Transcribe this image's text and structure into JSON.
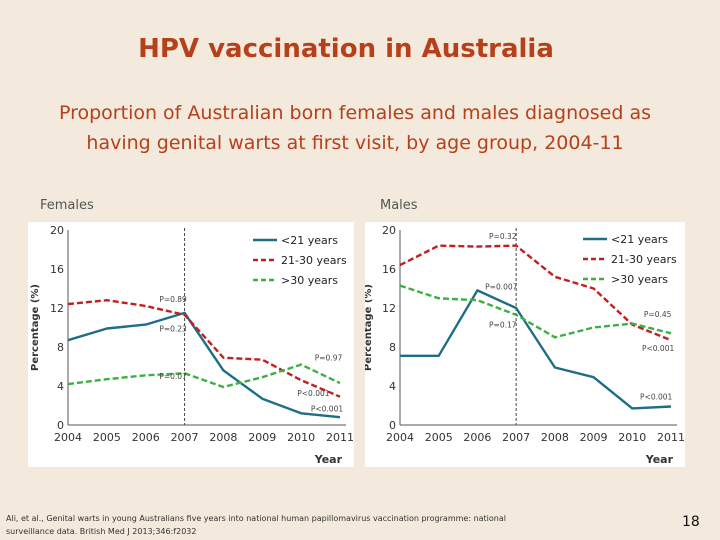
{
  "slide": {
    "title": "HPV vaccination in Australia",
    "subtitle_line1": "Proportion of Australian born females and males diagnosed as",
    "subtitle_line2": "having genital warts at first visit, by age group,  2004-11",
    "females_label": "Females",
    "males_label": "Males",
    "footer_line1": "Ali, et al., Genital warts in young Australians five years into national human papillomavirus vaccination programme: national",
    "footer_line2": "surveillance data.  British Med J 2013;346:f2032",
    "page_number": "18"
  },
  "colors": {
    "under21": "#1e6e85",
    "age21to30": "#c41e1e",
    "over30": "#3cb043",
    "title": "#b5401a"
  },
  "chart_data": [
    {
      "type": "line",
      "name": "Females",
      "x": [
        2004,
        2005,
        2006,
        2007,
        2008,
        2009,
        2010,
        2011
      ],
      "xlabel": "Year",
      "ylabel": "Percentage (%)",
      "ylim": [
        0,
        20
      ],
      "yticks": [
        0,
        4,
        8,
        12,
        16,
        20
      ],
      "legend": "top-right",
      "vline_x": 2007,
      "series": [
        {
          "name": "<21 years",
          "color": "#1e6e85",
          "style": "solid",
          "values": [
            8.7,
            9.9,
            10.3,
            11.5,
            5.6,
            2.7,
            1.2,
            0.8
          ]
        },
        {
          "name": "21-30 years",
          "color": "#c41e1e",
          "style": "dashed",
          "values": [
            12.4,
            12.8,
            12.2,
            11.3,
            6.9,
            6.7,
            4.6,
            2.9
          ]
        },
        {
          "name": ">30 years",
          "color": "#3cb043",
          "style": "dashed",
          "values": [
            4.2,
            4.7,
            5.1,
            5.3,
            3.9,
            4.9,
            6.2,
            4.3
          ]
        }
      ],
      "annotations": [
        {
          "text": "P=0.89",
          "x": 2006.35,
          "y": 12.6
        },
        {
          "text": "P=0.23",
          "x": 2006.35,
          "y": 9.6
        },
        {
          "text": "P=0.07",
          "x": 2006.35,
          "y": 4.7
        },
        {
          "text": "P=0.97",
          "x": 2010.35,
          "y": 6.6
        },
        {
          "text": "P<0.001",
          "x": 2009.9,
          "y": 3.0
        },
        {
          "text": "P<0.001",
          "x": 2010.25,
          "y": 1.4
        }
      ]
    },
    {
      "type": "line",
      "name": "Males",
      "x": [
        2004,
        2005,
        2006,
        2007,
        2008,
        2009,
        2010,
        2011
      ],
      "xlabel": "Year",
      "ylabel": "Percentage (%)",
      "ylim": [
        0,
        20
      ],
      "yticks": [
        0,
        4,
        8,
        12,
        16,
        20
      ],
      "legend": "top-right",
      "vline_x": 2007,
      "series": [
        {
          "name": "<21 years",
          "color": "#1e6e85",
          "style": "solid",
          "values": [
            7.1,
            7.1,
            13.8,
            12.0,
            5.9,
            4.9,
            1.7,
            1.9
          ]
        },
        {
          "name": "21-30 years",
          "color": "#c41e1e",
          "style": "dashed",
          "values": [
            16.4,
            18.4,
            18.3,
            18.4,
            15.2,
            14.0,
            10.3,
            8.7
          ]
        },
        {
          "name": ">30 years",
          "color": "#3cb043",
          "style": "dashed",
          "values": [
            14.3,
            13.0,
            12.8,
            11.3,
            9.0,
            10.0,
            10.4,
            9.4
          ]
        }
      ],
      "annotations": [
        {
          "text": "P=0.32",
          "x": 2006.3,
          "y": 19.1
        },
        {
          "text": "P=0.007",
          "x": 2006.2,
          "y": 13.9
        },
        {
          "text": "P=0.17",
          "x": 2006.3,
          "y": 10.0
        },
        {
          "text": "P=0.45",
          "x": 2010.3,
          "y": 11.1
        },
        {
          "text": "P<0.001",
          "x": 2010.25,
          "y": 7.6
        },
        {
          "text": "P<0.001",
          "x": 2010.2,
          "y": 2.6
        }
      ]
    }
  ]
}
